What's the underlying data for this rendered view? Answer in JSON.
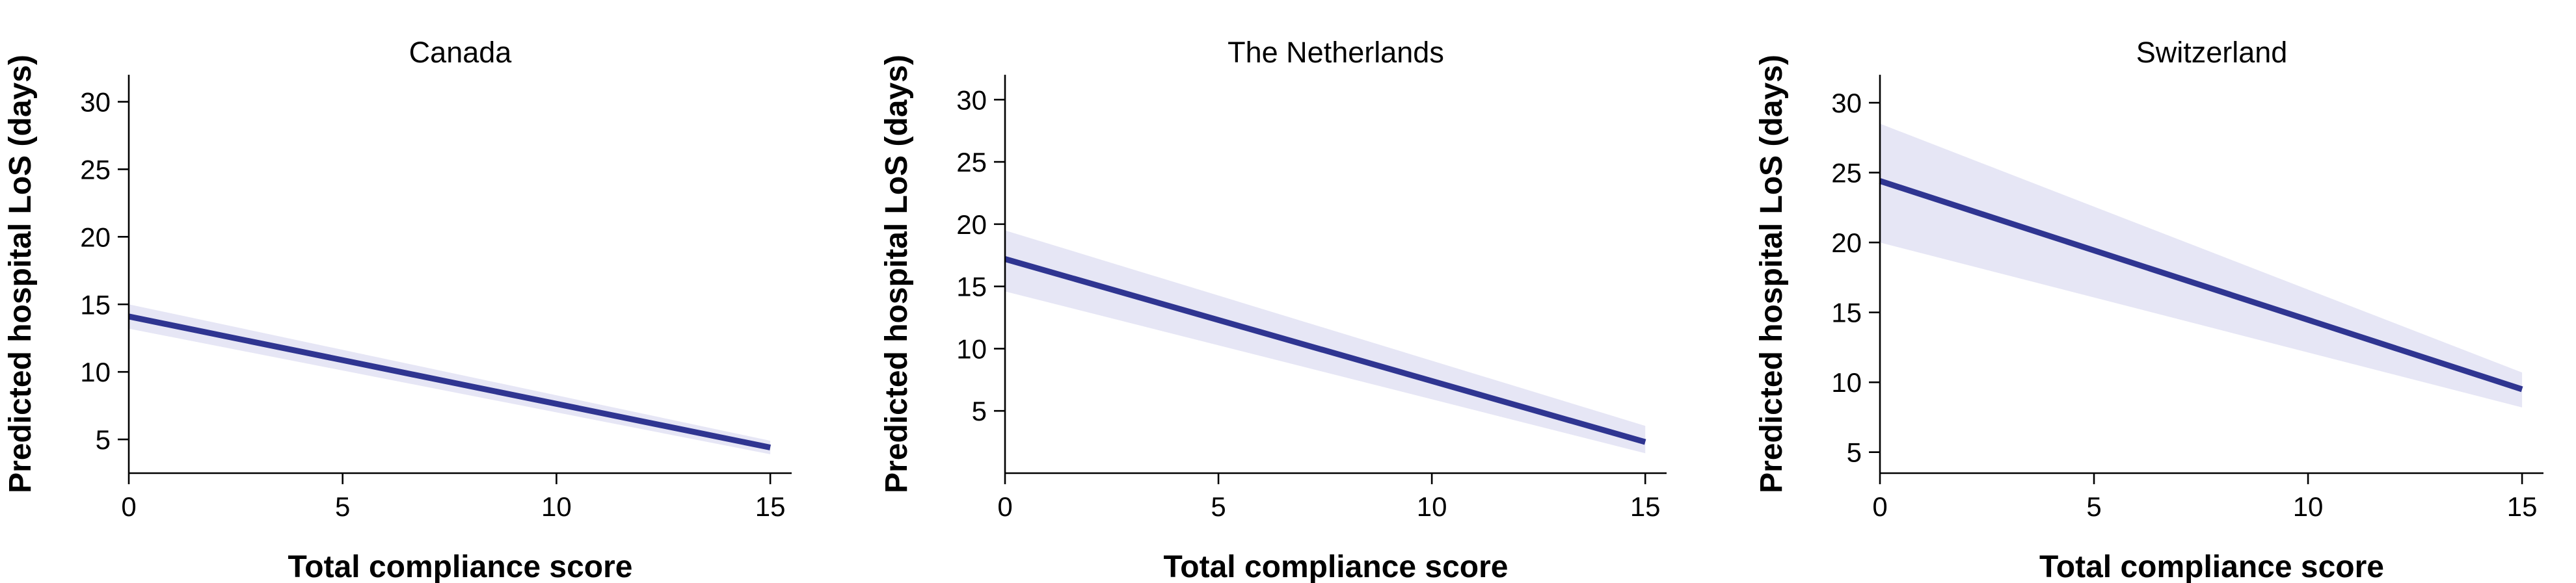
{
  "chart_data": [
    {
      "type": "line",
      "title": "Canada",
      "xlabel": "Total compliance score",
      "ylabel": "Predicted hospital LoS (days)",
      "x_ticks": [
        0,
        5,
        10,
        15
      ],
      "y_ticks": [
        5,
        10,
        15,
        20,
        25,
        30
      ],
      "xlim": [
        0,
        15.5
      ],
      "ylim": [
        2.5,
        32
      ],
      "grid": false,
      "series": [
        {
          "x": [
            0,
            15
          ],
          "y": [
            14.1,
            4.4
          ],
          "lower": [
            13.2,
            3.9
          ],
          "upper": [
            15.0,
            4.9
          ]
        }
      ]
    },
    {
      "type": "line",
      "title": "The Netherlands",
      "xlabel": "Total compliance score",
      "ylabel": "Predicted hospital LoS (days)",
      "x_ticks": [
        0,
        5,
        10,
        15
      ],
      "y_ticks": [
        5,
        10,
        15,
        20,
        25,
        30
      ],
      "xlim": [
        0,
        15.5
      ],
      "ylim": [
        0,
        32
      ],
      "grid": false,
      "series": [
        {
          "x": [
            0,
            15
          ],
          "y": [
            17.2,
            2.5
          ],
          "lower": [
            14.6,
            1.6
          ],
          "upper": [
            19.5,
            3.8
          ]
        }
      ]
    },
    {
      "type": "line",
      "title": "Switzerland",
      "xlabel": "Total compliance score",
      "ylabel": "Predicted hospital LoS (days)",
      "x_ticks": [
        0,
        5,
        10,
        15
      ],
      "y_ticks": [
        5,
        10,
        15,
        20,
        25,
        30
      ],
      "xlim": [
        0,
        15.5
      ],
      "ylim": [
        3.5,
        32
      ],
      "grid": false,
      "series": [
        {
          "x": [
            0,
            15
          ],
          "y": [
            24.4,
            9.5
          ],
          "lower": [
            20.0,
            8.2
          ],
          "upper": [
            28.5,
            10.7
          ]
        }
      ]
    }
  ],
  "colors": {
    "line": "#2f3591",
    "band": "#e6e6f5",
    "axis": "#000000"
  }
}
